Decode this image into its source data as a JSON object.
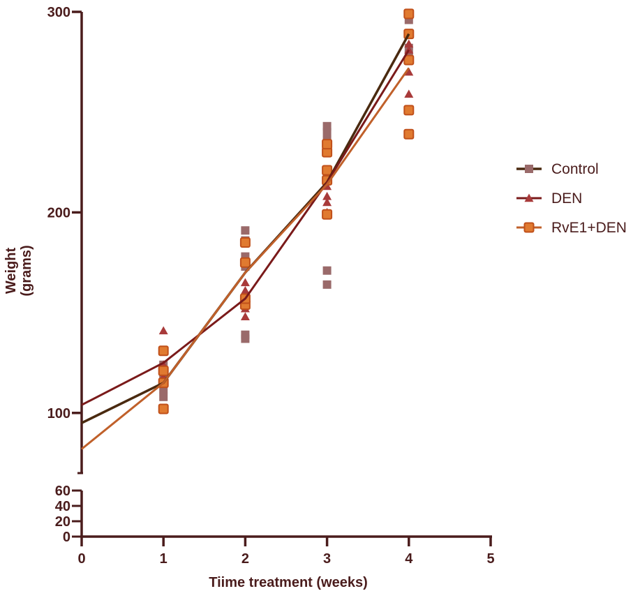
{
  "chart_data": {
    "type": "scatter",
    "title": "",
    "xlabel": "Tiime treatment (weeks)",
    "ylabel_line1": "Weight",
    "ylabel_line2": "(grams)",
    "x_range": [
      0,
      5
    ],
    "x_ticks": [
      "0",
      "1",
      "2",
      "3",
      "4",
      "5"
    ],
    "y_upper_range": [
      70,
      300
    ],
    "y_upper_ticks": [
      "100",
      "200",
      "300"
    ],
    "y_lower_range": [
      0,
      60
    ],
    "y_lower_ticks": [
      "0",
      "20",
      "40",
      "60"
    ],
    "axis_break": true,
    "grid": false,
    "legend_position": "right",
    "colors": {
      "axis": "#4a1c1c",
      "text": "#4a1c1c",
      "control_line": "#4a2a10",
      "control_marker": "#9a6a6a",
      "den_line": "#7a1a1a",
      "den_marker": "#a83a3a",
      "rve_line": "#c0602a",
      "rve_marker": "#e07a30",
      "rve_marker_edge": "#c0501a"
    },
    "series": [
      {
        "name": "Control",
        "marker": "square",
        "points": [
          [
            1,
            108
          ],
          [
            1,
            112
          ],
          [
            1,
            118
          ],
          [
            1,
            124
          ],
          [
            2,
            139
          ],
          [
            2,
            137
          ],
          [
            2,
            173
          ],
          [
            2,
            178
          ],
          [
            2,
            186
          ],
          [
            2,
            191
          ],
          [
            3,
            164
          ],
          [
            3,
            171
          ],
          [
            3,
            230
          ],
          [
            3,
            236
          ],
          [
            3,
            240
          ],
          [
            3,
            243
          ],
          [
            4,
            278
          ],
          [
            4,
            282
          ],
          [
            4,
            289
          ],
          [
            4,
            296
          ]
        ],
        "fit": [
          [
            0,
            95
          ],
          [
            1,
            115
          ],
          [
            2,
            170
          ],
          [
            3,
            215
          ],
          [
            4,
            289
          ]
        ]
      },
      {
        "name": "DEN",
        "marker": "triangle",
        "points": [
          [
            1,
            141
          ],
          [
            1,
            124
          ],
          [
            1,
            118
          ],
          [
            2,
            165
          ],
          [
            2,
            161
          ],
          [
            2,
            152
          ],
          [
            2,
            148
          ],
          [
            3,
            213
          ],
          [
            3,
            208
          ],
          [
            3,
            205
          ],
          [
            3,
            200
          ],
          [
            4,
            259
          ],
          [
            4,
            270
          ],
          [
            4,
            281
          ],
          [
            4,
            284
          ]
        ],
        "fit": [
          [
            0,
            104
          ],
          [
            1,
            125
          ],
          [
            2,
            157
          ],
          [
            3,
            215
          ],
          [
            4,
            281
          ]
        ]
      },
      {
        "name": "RvE1+DEN",
        "marker": "square-orange",
        "points": [
          [
            1,
            102
          ],
          [
            1,
            115
          ],
          [
            1,
            121
          ],
          [
            1,
            131
          ],
          [
            2,
            154
          ],
          [
            2,
            157
          ],
          [
            2,
            175
          ],
          [
            2,
            185
          ],
          [
            3,
            199
          ],
          [
            3,
            216
          ],
          [
            3,
            221
          ],
          [
            3,
            230
          ],
          [
            3,
            234
          ],
          [
            4,
            239
          ],
          [
            4,
            251
          ],
          [
            4,
            276
          ],
          [
            4,
            289
          ],
          [
            4,
            299
          ]
        ],
        "fit": [
          [
            0,
            82
          ],
          [
            1,
            115
          ],
          [
            2,
            170
          ],
          [
            3,
            214
          ],
          [
            4,
            272
          ]
        ]
      }
    ]
  }
}
